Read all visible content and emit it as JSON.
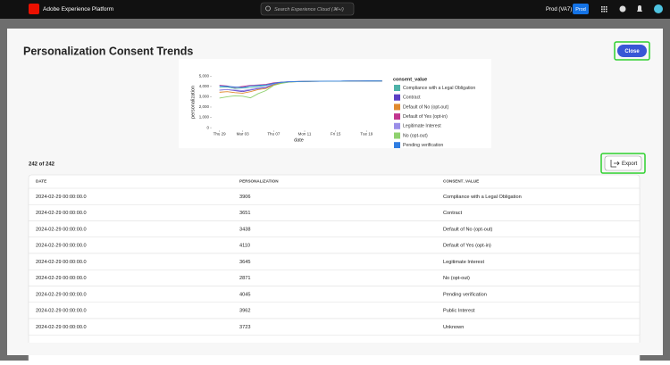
{
  "topbar": {
    "product": "Adobe Experience Platform",
    "search": "Search Experience Cloud (⌘+/)",
    "sandbox": "Prod (VA7)",
    "badge": "Prod"
  },
  "modal": {
    "title": "Personalization Consent Trends",
    "close": "Close",
    "count": "242 of 242",
    "export": "Export"
  },
  "chart_data": {
    "type": "line",
    "xlabel": "date",
    "ylabel": "personalization",
    "legend_title": "consent_value",
    "x": [
      0,
      1,
      2,
      3,
      4,
      5,
      6,
      7,
      8,
      9,
      10,
      11,
      12,
      13,
      14,
      15,
      16,
      17,
      18,
      19,
      20,
      21
    ],
    "xlim": [
      -1,
      21.5
    ],
    "xticks": [
      {
        "value": 0,
        "label": "Thu 29"
      },
      {
        "value": 3,
        "label": "Mar 03"
      },
      {
        "value": 7,
        "label": "Thu 07"
      },
      {
        "value": 11,
        "label": "Mon 11"
      },
      {
        "value": 15,
        "label": "Fri 15"
      },
      {
        "value": 19,
        "label": "Tue 19"
      }
    ],
    "ylim": [
      -250,
      5200
    ],
    "yticks": [
      0,
      {
        "value": 1000,
        "label": "1,000"
      },
      {
        "value": 2000,
        "label": "2,000"
      },
      {
        "value": 3000,
        "label": "3,000"
      },
      {
        "value": 4000,
        "label": "4,000"
      },
      {
        "value": 5000,
        "label": "5,000"
      }
    ],
    "series": [
      {
        "name": "Compliance with a Legal Obligation",
        "color": "#4fb3a9",
        "values": [
          3906,
          3950,
          3800,
          3850,
          3900,
          4000,
          4100,
          4300,
          4400,
          4450,
          4480,
          4490,
          4500,
          4500,
          4510,
          4510,
          4520,
          4520,
          4520,
          4530,
          4530,
          4530
        ]
      },
      {
        "name": "Contract",
        "color": "#5b3fc4",
        "values": [
          3651,
          3700,
          3600,
          3500,
          3650,
          3800,
          3900,
          4200,
          4380,
          4450,
          4470,
          4480,
          4490,
          4500,
          4500,
          4510,
          4510,
          4520,
          4520,
          4520,
          4530,
          4530
        ]
      },
      {
        "name": "Default of No (opt-out)",
        "color": "#e08a2e",
        "values": [
          3438,
          3500,
          3400,
          3350,
          3500,
          3700,
          3800,
          4150,
          4350,
          4430,
          4460,
          4480,
          4490,
          4500,
          4500,
          4500,
          4510,
          4510,
          4520,
          4520,
          4520,
          4530
        ]
      },
      {
        "name": "Default of Yes (opt-in)",
        "color": "#c2368f",
        "values": [
          4110,
          4050,
          3900,
          4000,
          4100,
          4150,
          4200,
          4350,
          4420,
          4460,
          4480,
          4490,
          4500,
          4500,
          4510,
          4510,
          4510,
          4520,
          4520,
          4520,
          4530,
          4530
        ]
      },
      {
        "name": "Legitimate Interest",
        "color": "#9a8ee8",
        "values": [
          3645,
          3700,
          3650,
          3600,
          3700,
          3850,
          3950,
          4250,
          4400,
          4450,
          4470,
          4490,
          4500,
          4500,
          4510,
          4510,
          4520,
          4520,
          4520,
          4530,
          4530,
          4530
        ]
      },
      {
        "name": "No (opt-out)",
        "color": "#8fd16e",
        "values": [
          2871,
          3000,
          3100,
          3050,
          2900,
          3300,
          3600,
          4100,
          4300,
          4420,
          4460,
          4480,
          4490,
          4500,
          4500,
          4510,
          4510,
          4520,
          4520,
          4520,
          4530,
          4530
        ]
      },
      {
        "name": "Pending verification",
        "color": "#2f7de1",
        "values": [
          4045,
          4000,
          3950,
          3900,
          4050,
          4100,
          4150,
          4300,
          4400,
          4450,
          4470,
          4490,
          4500,
          4500,
          4510,
          4510,
          4520,
          4520,
          4520,
          4530,
          4530,
          4530
        ]
      }
    ]
  },
  "table": {
    "columns": [
      "DATE",
      "PERSONALIZATION",
      "CONSENT_VALUE"
    ],
    "rows": [
      [
        "2024-02-29 00:00:00.0",
        3906,
        "Compliance with a Legal Obligation"
      ],
      [
        "2024-02-29 00:00:00.0",
        3651,
        "Contract"
      ],
      [
        "2024-02-29 00:00:00.0",
        3438,
        "Default of No (opt-out)"
      ],
      [
        "2024-02-29 00:00:00.0",
        4110,
        "Default of Yes (opt-in)"
      ],
      [
        "2024-02-29 00:00:00.0",
        3645,
        "Legitimate Interest"
      ],
      [
        "2024-02-29 00:00:00.0",
        2871,
        "No (opt-out)"
      ],
      [
        "2024-02-29 00:00:00.0",
        4045,
        "Pending verification"
      ],
      [
        "2024-02-29 00:00:00.0",
        3962,
        "Public Interest"
      ],
      [
        "2024-02-29 00:00:00.0",
        3723,
        "Unknown"
      ]
    ]
  }
}
